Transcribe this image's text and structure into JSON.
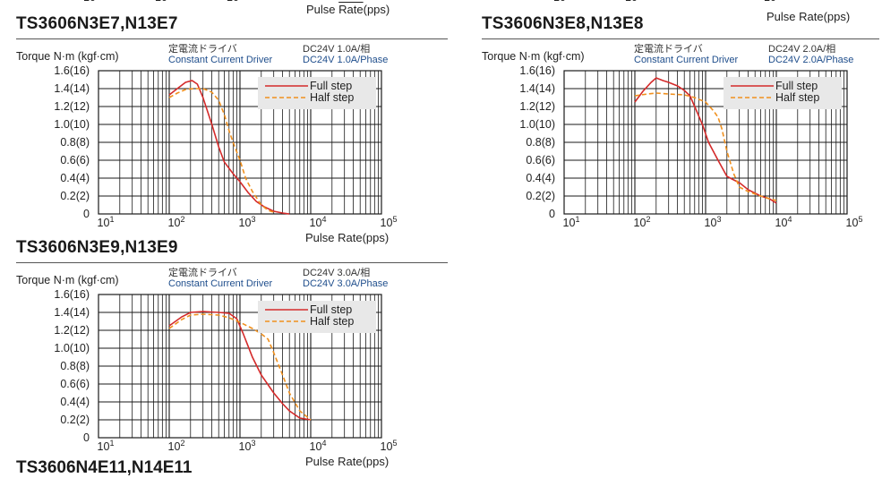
{
  "top_fragment": {
    "tick_labels_left": [
      "10",
      "10",
      "10"
    ],
    "tick_labels_right": [
      "10",
      "10",
      "10"
    ],
    "xlabel_right": "Pulse Rate(pps)"
  },
  "colors": {
    "full_step": "#d42a2a",
    "half_step": "#f0901e",
    "grid": "#1a1a1a",
    "legend_bg": "#e8e8e8"
  },
  "chart_data": [
    {
      "type": "line",
      "title": "TS3606N3E7,N13E7",
      "ylabel": "Torque N·m (kgf·cm)",
      "xlabel": "Pulse Rate(pps)",
      "driver_jp": "定電流ドライバ",
      "driver_en": "Constant Current Driver",
      "spec_jp": "DC24V 1.0A/相",
      "spec_en": "DC24V 1.0A/Phase",
      "xscale": "log",
      "xlim": [
        10,
        100000
      ],
      "ylim": [
        0,
        1.6
      ],
      "x_ticks": [
        {
          "base": "10",
          "exp": "1"
        },
        {
          "base": "10",
          "exp": "2"
        },
        {
          "base": "10",
          "exp": "3"
        },
        {
          "base": "10",
          "exp": "4"
        },
        {
          "base": "10",
          "exp": "5"
        }
      ],
      "y_ticks": [
        "0",
        "0.2(2)",
        "0.4(4)",
        "0.6(6)",
        "0.8(8)",
        "1.0(10)",
        "1.2(12)",
        "1.4(14)",
        "1.6(16)"
      ],
      "legend_position": "top-right",
      "series": [
        {
          "name": "Full step",
          "style": "solid",
          "x": [
            100,
            130,
            170,
            210,
            250,
            300,
            400,
            500,
            600,
            800,
            1000,
            1300,
            1700,
            2200,
            3000,
            4000,
            5000
          ],
          "y": [
            1.33,
            1.4,
            1.47,
            1.49,
            1.45,
            1.3,
            1.0,
            0.75,
            0.58,
            0.45,
            0.36,
            0.24,
            0.14,
            0.08,
            0.03,
            0.01,
            0.0
          ]
        },
        {
          "name": "Half step",
          "style": "dashed",
          "x": [
            100,
            130,
            170,
            220,
            300,
            400,
            500,
            600,
            700,
            800,
            1000,
            1200,
            1500,
            2000,
            2500,
            3000
          ],
          "y": [
            1.3,
            1.35,
            1.39,
            1.4,
            1.4,
            1.36,
            1.27,
            1.11,
            0.93,
            0.8,
            0.6,
            0.4,
            0.25,
            0.1,
            0.04,
            0.02
          ]
        }
      ]
    },
    {
      "type": "line",
      "title": "TS3606N3E8,N13E8",
      "ylabel": "Torque N·m (kgf·cm)",
      "xlabel": "Pulse Rate(pps)",
      "driver_jp": "定電流ドライバ",
      "driver_en": "Constant Current Driver",
      "spec_jp": "DC24V 2.0A/相",
      "spec_en": "DC24V 2.0A/Phase",
      "xscale": "log",
      "xlim": [
        10,
        100000
      ],
      "ylim": [
        0,
        1.6
      ],
      "x_ticks": [
        {
          "base": "10",
          "exp": "1"
        },
        {
          "base": "10",
          "exp": "2"
        },
        {
          "base": "10",
          "exp": "3"
        },
        {
          "base": "10",
          "exp": "4"
        },
        {
          "base": "10",
          "exp": "5"
        }
      ],
      "y_ticks": [
        "0",
        "0.2(2)",
        "0.4(4)",
        "0.6(6)",
        "0.8(8)",
        "1.0(10)",
        "1.2(12)",
        "1.4(14)",
        "1.6(16)"
      ],
      "legend_position": "top-right",
      "series": [
        {
          "name": "Full step",
          "style": "solid",
          "x": [
            100,
            130,
            170,
            200,
            250,
            300,
            400,
            500,
            600,
            700,
            900,
            1100,
            1500,
            2000,
            2500,
            3000,
            4000,
            6000,
            8000,
            10000
          ],
          "y": [
            1.25,
            1.37,
            1.47,
            1.52,
            1.49,
            1.47,
            1.43,
            1.38,
            1.32,
            1.2,
            1.0,
            0.8,
            0.6,
            0.42,
            0.38,
            0.35,
            0.27,
            0.2,
            0.17,
            0.12
          ]
        },
        {
          "name": "Half step",
          "style": "dashed",
          "x": [
            100,
            150,
            200,
            300,
            500,
            700,
            1000,
            1300,
            1500,
            1700,
            2000,
            2500,
            3000,
            4000,
            6000,
            8000,
            10000
          ],
          "y": [
            1.32,
            1.34,
            1.35,
            1.34,
            1.33,
            1.3,
            1.25,
            1.15,
            1.08,
            0.95,
            0.7,
            0.45,
            0.3,
            0.25,
            0.2,
            0.17,
            0.15
          ]
        }
      ]
    },
    {
      "type": "line",
      "title": "TS3606N3E9,N13E9",
      "ylabel": "Torque N·m (kgf·cm)",
      "xlabel": "Pulse Rate(pps)",
      "driver_jp": "定電流ドライバ",
      "driver_en": "Constant Current Driver",
      "spec_jp": "DC24V 3.0A/相",
      "spec_en": "DC24V 3.0A/Phase",
      "xscale": "log",
      "xlim": [
        10,
        100000
      ],
      "ylim": [
        0,
        1.6
      ],
      "x_ticks": [
        {
          "base": "10",
          "exp": "1"
        },
        {
          "base": "10",
          "exp": "2"
        },
        {
          "base": "10",
          "exp": "3"
        },
        {
          "base": "10",
          "exp": "4"
        },
        {
          "base": "10",
          "exp": "5"
        }
      ],
      "y_ticks": [
        "0",
        "0.2(2)",
        "0.4(4)",
        "0.6(6)",
        "0.8(8)",
        "1.0(10)",
        "1.2(12)",
        "1.4(14)",
        "1.6(16)"
      ],
      "legend_position": "top-right",
      "series": [
        {
          "name": "Full step",
          "style": "solid",
          "x": [
            100,
            150,
            200,
            300,
            500,
            700,
            900,
            1100,
            1500,
            2000,
            3000,
            4000,
            5000,
            7000,
            10000
          ],
          "y": [
            1.25,
            1.35,
            1.4,
            1.41,
            1.4,
            1.39,
            1.33,
            1.17,
            0.9,
            0.7,
            0.5,
            0.38,
            0.3,
            0.22,
            0.2
          ]
        },
        {
          "name": "Half step",
          "style": "dashed",
          "x": [
            100,
            150,
            200,
            300,
            500,
            700,
            1000,
            1500,
            2000,
            2500,
            3000,
            4000,
            5000,
            7000,
            10000
          ],
          "y": [
            1.22,
            1.32,
            1.37,
            1.38,
            1.37,
            1.34,
            1.29,
            1.22,
            1.16,
            1.1,
            0.95,
            0.7,
            0.5,
            0.3,
            0.2
          ]
        }
      ]
    }
  ],
  "bottom_fragment": {
    "title": "TS3606N4E11,N14E11"
  }
}
